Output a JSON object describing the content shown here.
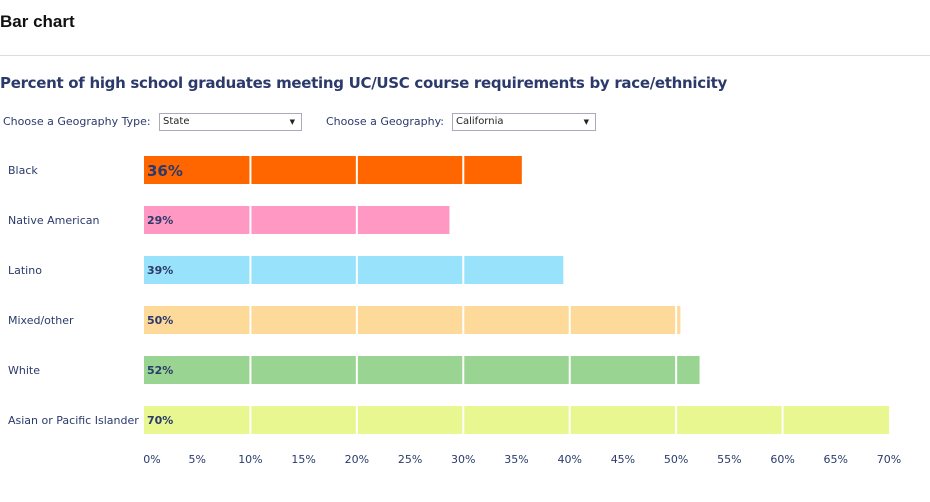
{
  "header": {
    "title": "Bar chart"
  },
  "controls": {
    "geo_type_label": "Choose a Geography Type:",
    "geo_type_value": "State",
    "geo_label": "Choose a Geography:",
    "geo_value": "California"
  },
  "chart_data": {
    "type": "bar",
    "orientation": "horizontal",
    "title": "Percent of high school graduates meeting UC/USC course requirements by race/ethnicity",
    "categories": [
      "Black",
      "Native American",
      "Latino",
      "Mixed/other",
      "White",
      "Asian or Pacific Islander"
    ],
    "values": [
      35.5,
      28.7,
      39.4,
      50.4,
      52.2,
      70
    ],
    "data_labels": [
      "36%",
      "29%",
      "39%",
      "50%",
      "52%",
      "70%"
    ],
    "colors": [
      "#ff6600",
      "#ff99c4",
      "#99e2fc",
      "#fdd99a",
      "#9ad492",
      "#e8f78f"
    ],
    "xlim": [
      0,
      70
    ],
    "x_ticks": [
      "0%",
      "5%",
      "10%",
      "15%",
      "20%",
      "25%",
      "30%",
      "35%",
      "40%",
      "45%",
      "50%",
      "55%",
      "60%",
      "65%",
      "70%"
    ],
    "grid": "vertical white lines every 10%",
    "legend": "none"
  }
}
